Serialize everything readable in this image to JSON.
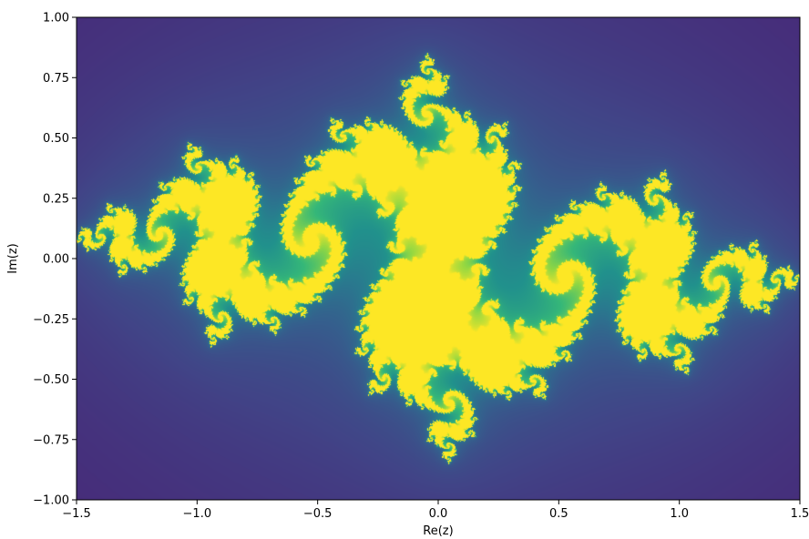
{
  "chart_data": {
    "type": "heatmap",
    "title": "",
    "xlabel": "Re(z)",
    "ylabel": "Im(z)",
    "xlim": [
      -1.5,
      1.5
    ],
    "ylim": [
      -1.0,
      1.0
    ],
    "x_ticks": [
      "−1.5",
      "−1.0",
      "−0.5",
      "0.0",
      "0.5",
      "1.0",
      "1.5"
    ],
    "x_tick_values": [
      -1.5,
      -1.0,
      -0.5,
      0.0,
      0.5,
      1.0,
      1.5
    ],
    "y_ticks": [
      "1.00",
      "0.75",
      "0.50",
      "0.25",
      "0.00",
      "−0.25",
      "−0.50",
      "−0.75",
      "−1.00"
    ],
    "y_tick_values": [
      1.0,
      0.75,
      0.5,
      0.25,
      0.0,
      -0.25,
      -0.5,
      -0.75,
      -1.0
    ],
    "colormap": "viridis",
    "grid": false,
    "colors": {
      "low": "#440154",
      "mid": "#21918c",
      "high": "#fde725"
    }
  }
}
